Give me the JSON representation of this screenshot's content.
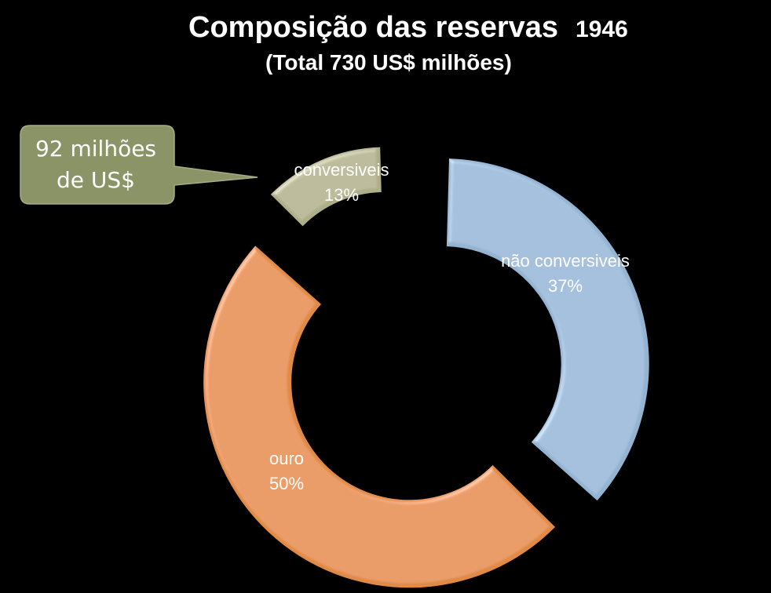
{
  "title": "Composição das reservas",
  "year": "1946",
  "subtitle": "(Total 730 US$ milhões)",
  "callout": {
    "line1": "92 milhões",
    "line2": "de US$",
    "color": "#8b9466"
  },
  "chart_data": {
    "type": "pie",
    "variant": "exploded-donut",
    "title": "Composição das reservas 1946",
    "subtitle": "(Total 730 US$ milhões)",
    "categories": [
      "não conversiveis",
      "ouro",
      "conversiveis"
    ],
    "values": [
      37,
      50,
      13
    ],
    "labels": [
      "37%",
      "50%",
      "13%"
    ],
    "unit": "%",
    "colors": [
      "#94b3d1",
      "#e08a45",
      "#afae8a"
    ],
    "legend": "none"
  }
}
